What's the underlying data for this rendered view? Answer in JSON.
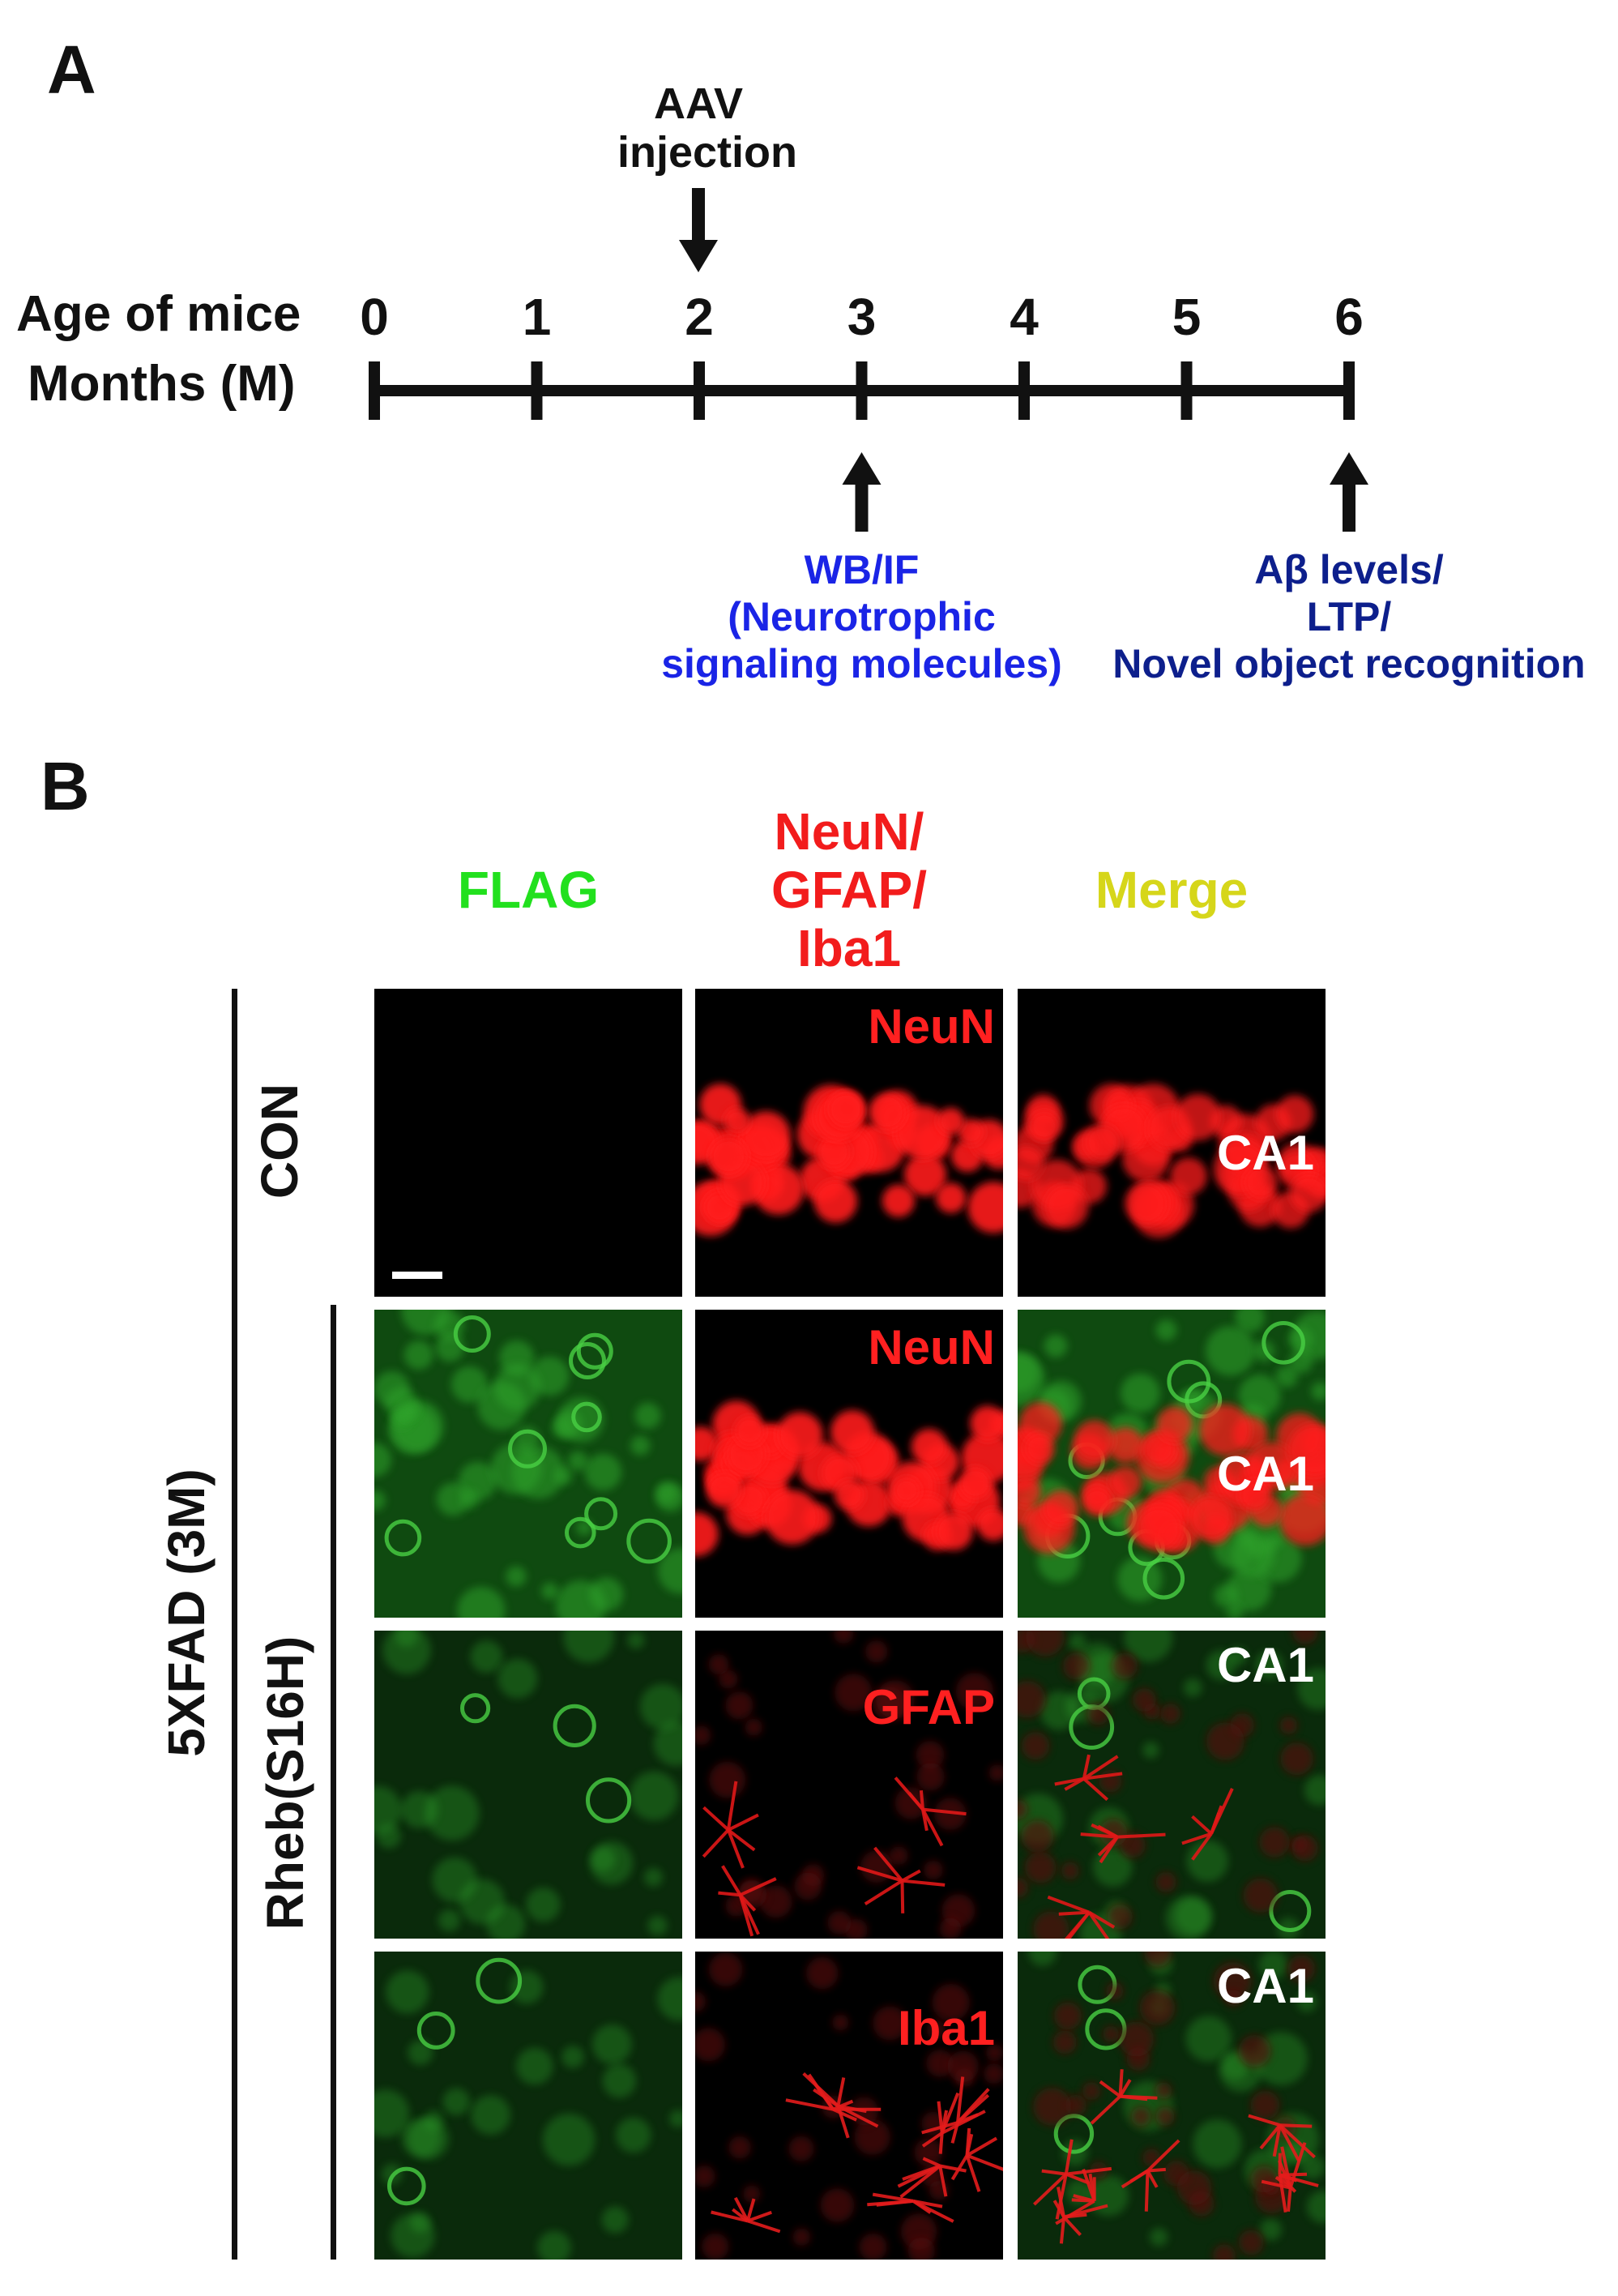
{
  "panel_a": {
    "letter": "A",
    "injection_label_line1": "AAV",
    "injection_label_line2": "injection",
    "age_label": "Age of mice",
    "months_label": "Months (M)",
    "ticks": [
      "0",
      "1",
      "2",
      "3",
      "4",
      "5",
      "6"
    ],
    "injection_at_month": 2,
    "assays": [
      {
        "month": 3,
        "lines": [
          "WB/IF",
          "(Neurotrophic",
          "signaling molecules)"
        ],
        "color": "#1a24e6"
      },
      {
        "month": 6,
        "lines": [
          "Aβ levels/",
          "LTP/",
          "Novel object recognition"
        ],
        "color": "#0d1f8c"
      }
    ]
  },
  "panel_b": {
    "letter": "B",
    "columns": [
      {
        "lines": [
          "FLAG"
        ],
        "color": "#22e01e"
      },
      {
        "lines": [
          "NeuN/",
          "GFAP/",
          "Iba1"
        ],
        "color": "#f21c1c"
      },
      {
        "lines": [
          "Merge"
        ],
        "color": "#d6d61a"
      }
    ],
    "row_labels": {
      "control": "CON",
      "group": "5XFAD (3M)",
      "subgroup": "Rheb(S16H)"
    },
    "rows": [
      {
        "row": "CON",
        "marker": "NeuN",
        "region": "CA1",
        "flag": "none",
        "red": "band"
      },
      {
        "row": "Rheb(S16H)",
        "marker": "NeuN",
        "region": "CA1",
        "flag": "bright",
        "red": "band"
      },
      {
        "row": "Rheb(S16H)",
        "marker": "GFAP",
        "region": "CA1",
        "flag": "sparse",
        "red": "astro"
      },
      {
        "row": "Rheb(S16H)",
        "marker": "Iba1",
        "region": "CA1",
        "flag": "sparse",
        "red": "micro"
      }
    ],
    "colors": {
      "marker_label": "#ff2020",
      "region_label": "#ffffff",
      "scale_bar": "#ffffff"
    }
  }
}
